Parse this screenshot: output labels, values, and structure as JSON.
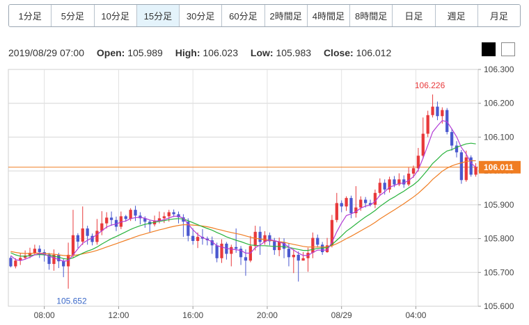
{
  "timeframe_tabs": [
    {
      "label": "1分足",
      "active": false
    },
    {
      "label": "5分足",
      "active": false
    },
    {
      "label": "10分足",
      "active": false
    },
    {
      "label": "15分足",
      "active": true
    },
    {
      "label": "30分足",
      "active": false
    },
    {
      "label": "60分足",
      "active": false
    },
    {
      "label": "2時間足",
      "active": false
    },
    {
      "label": "4時間足",
      "active": false
    },
    {
      "label": "8時間足",
      "active": false
    },
    {
      "label": "日足",
      "active": false
    },
    {
      "label": "週足",
      "active": false
    },
    {
      "label": "月足",
      "active": false
    }
  ],
  "ohlc": {
    "datetime": "2019/08/29 07:00",
    "open_label": "Open:",
    "open": "105.989",
    "high_label": "High:",
    "high": "106.023",
    "low_label": "Low:",
    "low": "105.983",
    "close_label": "Close:",
    "close": "106.012"
  },
  "chart_data": {
    "type": "candlestick",
    "ylim": [
      105.6,
      106.3
    ],
    "y_ticks": [
      "106.300",
      "106.200",
      "106.100",
      "106.000",
      "105.900",
      "105.800",
      "105.700",
      "105.600"
    ],
    "x_ticks": [
      "08:00",
      "12:00",
      "16:00",
      "20:00",
      "08/29",
      "04:00"
    ],
    "x_tick_positions": [
      7.5,
      23,
      38.5,
      54,
      69.5,
      85
    ],
    "current_price_label": "106.011",
    "current_price": 106.011,
    "max_annotation": {
      "label": "106.226",
      "index": 88,
      "value": 106.226
    },
    "min_annotation": {
      "label": "105.652",
      "index": 13,
      "value": 105.652
    },
    "grid": true,
    "colors": {
      "up": "#e8393b",
      "down": "#4a58cf",
      "ma_short": "#b23bd6",
      "ma_mid": "#27b23b",
      "ma_long": "#f07d22",
      "price_line": "#f07d22",
      "price_tag": "#f07d22",
      "max_label": "#e8393b",
      "min_label": "#3a68c8"
    },
    "candles": [
      [
        105.743,
        105.718,
        105.748,
        105.715
      ],
      [
        105.718,
        105.735,
        105.742,
        105.712
      ],
      [
        105.735,
        105.743,
        105.757,
        105.722
      ],
      [
        105.743,
        105.75,
        105.765,
        105.738
      ],
      [
        105.75,
        105.758,
        105.773,
        105.742
      ],
      [
        105.758,
        105.77,
        105.782,
        105.751
      ],
      [
        105.77,
        105.76,
        105.78,
        105.743
      ],
      [
        105.76,
        105.753,
        105.768,
        105.732
      ],
      [
        105.753,
        105.725,
        105.758,
        105.708
      ],
      [
        105.725,
        105.752,
        105.768,
        105.705
      ],
      [
        105.752,
        105.733,
        105.758,
        105.713
      ],
      [
        105.733,
        105.718,
        105.741,
        105.686
      ],
      [
        105.718,
        105.752,
        105.788,
        105.652
      ],
      [
        105.752,
        105.81,
        105.885,
        105.743
      ],
      [
        105.81,
        105.791,
        105.816,
        105.772
      ],
      [
        105.791,
        105.83,
        105.895,
        105.781
      ],
      [
        105.83,
        105.808,
        105.838,
        105.782
      ],
      [
        105.808,
        105.79,
        105.815,
        105.78
      ],
      [
        105.79,
        105.823,
        105.858,
        105.782
      ],
      [
        105.823,
        105.845,
        105.881,
        105.81
      ],
      [
        105.845,
        105.862,
        105.878,
        105.83
      ],
      [
        105.862,
        105.855,
        105.88,
        105.838
      ],
      [
        105.855,
        105.835,
        105.865,
        105.822
      ],
      [
        105.835,
        105.866,
        105.88,
        105.828
      ],
      [
        105.866,
        105.858,
        105.87,
        105.85
      ],
      [
        105.858,
        105.885,
        105.89,
        105.852
      ],
      [
        105.885,
        105.868,
        105.897,
        105.852
      ],
      [
        105.868,
        105.86,
        105.878,
        105.842
      ],
      [
        105.86,
        105.85,
        105.866,
        105.832
      ],
      [
        105.85,
        105.842,
        105.856,
        105.818
      ],
      [
        105.842,
        105.853,
        105.868,
        105.836
      ],
      [
        105.853,
        105.86,
        105.88,
        105.845
      ],
      [
        105.86,
        105.866,
        105.878,
        105.846
      ],
      [
        105.866,
        105.878,
        105.885,
        105.85
      ],
      [
        105.878,
        105.872,
        105.886,
        105.864
      ],
      [
        105.872,
        105.863,
        105.88,
        105.845
      ],
      [
        105.863,
        105.85,
        105.872,
        105.805
      ],
      [
        105.85,
        105.808,
        105.86,
        105.792
      ],
      [
        105.808,
        105.793,
        105.83,
        105.782
      ],
      [
        105.793,
        105.805,
        105.818,
        105.772
      ],
      [
        105.805,
        105.8,
        105.828,
        105.782
      ],
      [
        105.8,
        105.795,
        105.806,
        105.78
      ],
      [
        105.795,
        105.78,
        105.806,
        105.755
      ],
      [
        105.78,
        105.742,
        105.788,
        105.73
      ],
      [
        105.742,
        105.785,
        105.798,
        105.728
      ],
      [
        105.785,
        105.755,
        105.79,
        105.738
      ],
      [
        105.755,
        105.775,
        105.782,
        105.718
      ],
      [
        105.775,
        105.77,
        105.83,
        105.758
      ],
      [
        105.77,
        105.745,
        105.778,
        105.722
      ],
      [
        105.745,
        105.735,
        105.768,
        105.69
      ],
      [
        105.735,
        105.778,
        105.808,
        105.73
      ],
      [
        105.778,
        105.82,
        105.838,
        105.765
      ],
      [
        105.82,
        105.79,
        105.836,
        105.752
      ],
      [
        105.79,
        105.81,
        105.822,
        105.782
      ],
      [
        105.81,
        105.792,
        105.818,
        105.78
      ],
      [
        105.792,
        105.766,
        105.802,
        105.752
      ],
      [
        105.766,
        105.79,
        105.803,
        105.748
      ],
      [
        105.79,
        105.77,
        105.801,
        105.742
      ],
      [
        105.77,
        105.745,
        105.786,
        105.718
      ],
      [
        105.745,
        105.752,
        105.769,
        105.698
      ],
      [
        105.752,
        105.735,
        105.762,
        105.673
      ],
      [
        105.735,
        105.742,
        105.76,
        105.735
      ],
      [
        105.742,
        105.758,
        105.773,
        105.702
      ],
      [
        105.758,
        105.802,
        105.818,
        105.742
      ],
      [
        105.802,
        105.782,
        105.812,
        105.774
      ],
      [
        105.782,
        105.76,
        105.79,
        105.752
      ],
      [
        105.76,
        105.78,
        105.802,
        105.758
      ],
      [
        105.78,
        105.855,
        105.87,
        105.774
      ],
      [
        105.855,
        105.905,
        105.935,
        105.848
      ],
      [
        105.905,
        105.895,
        105.913,
        105.878
      ],
      [
        105.895,
        105.92,
        105.925,
        105.882
      ],
      [
        105.92,
        105.875,
        105.927,
        105.86
      ],
      [
        105.875,
        105.892,
        105.955,
        105.862
      ],
      [
        105.892,
        105.915,
        105.925,
        105.882
      ],
      [
        105.915,
        105.905,
        105.923,
        105.892
      ],
      [
        105.905,
        105.9,
        105.915,
        105.895
      ],
      [
        105.9,
        105.935,
        105.945,
        105.89
      ],
      [
        105.935,
        105.965,
        105.978,
        105.926
      ],
      [
        105.965,
        105.945,
        105.975,
        105.93
      ],
      [
        105.945,
        105.975,
        105.983,
        105.936
      ],
      [
        105.975,
        105.96,
        105.985,
        105.952
      ],
      [
        105.96,
        105.975,
        105.993,
        105.955
      ],
      [
        105.975,
        105.96,
        105.987,
        105.95
      ],
      [
        105.96,
        105.992,
        106.01,
        105.955
      ],
      [
        105.992,
        106.008,
        106.016,
        105.98
      ],
      [
        106.008,
        106.045,
        106.068,
        105.998
      ],
      [
        106.045,
        106.11,
        106.158,
        106.036
      ],
      [
        106.11,
        106.165,
        106.178,
        106.1
      ],
      [
        106.165,
        106.19,
        106.226,
        106.158
      ],
      [
        106.19,
        106.162,
        106.205,
        106.15
      ],
      [
        106.162,
        106.18,
        106.188,
        106.14
      ],
      [
        106.18,
        106.115,
        106.186,
        106.108
      ],
      [
        106.115,
        106.075,
        106.125,
        106.06
      ],
      [
        106.075,
        106.055,
        106.088,
        106.04
      ],
      [
        106.055,
        105.973,
        106.062,
        105.962
      ],
      [
        105.973,
        106.04,
        106.06,
        105.968
      ],
      [
        106.04,
        105.989,
        106.046,
        105.983
      ],
      [
        105.989,
        106.012,
        106.023,
        105.983
      ]
    ],
    "ma_short": [
      105.75,
      105.738,
      105.735,
      105.739,
      105.745,
      105.752,
      105.756,
      105.754,
      105.748,
      105.743,
      105.738,
      105.733,
      105.735,
      105.752,
      105.77,
      105.786,
      105.795,
      105.802,
      105.812,
      105.823,
      105.834,
      105.84,
      105.843,
      105.849,
      105.852,
      105.859,
      105.862,
      105.863,
      105.86,
      105.855,
      105.852,
      105.853,
      105.856,
      105.861,
      105.866,
      105.866,
      105.86,
      105.843,
      105.826,
      105.812,
      105.803,
      105.797,
      105.791,
      105.779,
      105.775,
      105.771,
      105.769,
      105.767,
      105.765,
      105.757,
      105.757,
      105.773,
      105.781,
      105.791,
      105.797,
      105.794,
      105.79,
      105.785,
      105.775,
      105.766,
      105.757,
      105.75,
      105.75,
      105.759,
      105.766,
      105.766,
      105.766,
      105.789,
      105.82,
      105.846,
      105.868,
      105.873,
      105.88,
      105.89,
      105.896,
      105.899,
      105.91,
      105.928,
      105.938,
      105.952,
      105.957,
      105.963,
      105.964,
      105.972,
      105.983,
      106.003,
      106.038,
      106.076,
      106.115,
      106.133,
      106.149,
      106.146,
      106.124,
      106.101,
      106.069,
      106.05,
      106.023,
      106.011
    ],
    "ma_mid": [
      105.758,
      105.752,
      105.748,
      105.748,
      105.749,
      105.752,
      105.753,
      105.752,
      105.75,
      105.748,
      105.745,
      105.741,
      105.739,
      105.743,
      105.75,
      105.757,
      105.763,
      105.768,
      105.775,
      105.784,
      105.792,
      105.8,
      105.806,
      105.813,
      105.82,
      105.827,
      105.833,
      105.838,
      105.842,
      105.845,
      105.848,
      105.851,
      105.853,
      105.856,
      105.858,
      105.859,
      105.858,
      105.853,
      105.847,
      105.841,
      105.835,
      105.83,
      105.825,
      105.818,
      105.812,
      105.805,
      105.8,
      105.795,
      105.791,
      105.786,
      105.781,
      105.78,
      105.779,
      105.779,
      105.778,
      105.777,
      105.777,
      105.776,
      105.774,
      105.771,
      105.768,
      105.765,
      105.765,
      105.768,
      105.771,
      105.772,
      105.773,
      105.782,
      105.795,
      105.808,
      105.822,
      105.832,
      105.843,
      105.854,
      105.864,
      105.873,
      105.883,
      105.895,
      105.905,
      105.915,
      105.923,
      105.932,
      105.94,
      105.95,
      105.959,
      105.971,
      105.987,
      106.004,
      106.022,
      106.035,
      106.049,
      106.059,
      106.063,
      106.07,
      106.075,
      106.08,
      106.082,
      106.08
    ],
    "ma_long": [
      105.762,
      105.759,
      105.757,
      105.756,
      105.756,
      105.757,
      105.757,
      105.756,
      105.755,
      105.754,
      105.752,
      105.75,
      105.749,
      105.75,
      105.752,
      105.755,
      105.758,
      105.761,
      105.765,
      105.77,
      105.775,
      105.78,
      105.785,
      105.79,
      105.795,
      105.8,
      105.805,
      105.81,
      105.814,
      105.818,
      105.822,
      105.826,
      105.829,
      105.833,
      105.836,
      105.839,
      105.841,
      105.841,
      105.84,
      105.839,
      105.837,
      105.835,
      105.832,
      105.828,
      105.825,
      105.821,
      105.818,
      105.815,
      105.812,
      105.808,
      105.804,
      105.801,
      105.799,
      105.797,
      105.795,
      105.793,
      105.791,
      105.789,
      105.786,
      105.783,
      105.78,
      105.777,
      105.775,
      105.775,
      105.775,
      105.775,
      105.775,
      105.779,
      105.785,
      105.792,
      105.8,
      105.807,
      105.815,
      105.823,
      105.831,
      105.839,
      105.848,
      105.858,
      105.867,
      105.876,
      105.885,
      105.894,
      105.903,
      105.913,
      105.923,
      105.934,
      105.947,
      105.96,
      105.975,
      105.987,
      105.999,
      106.008,
      106.015,
      106.02,
      106.024,
      106.028,
      106.03,
      106.03
    ]
  }
}
